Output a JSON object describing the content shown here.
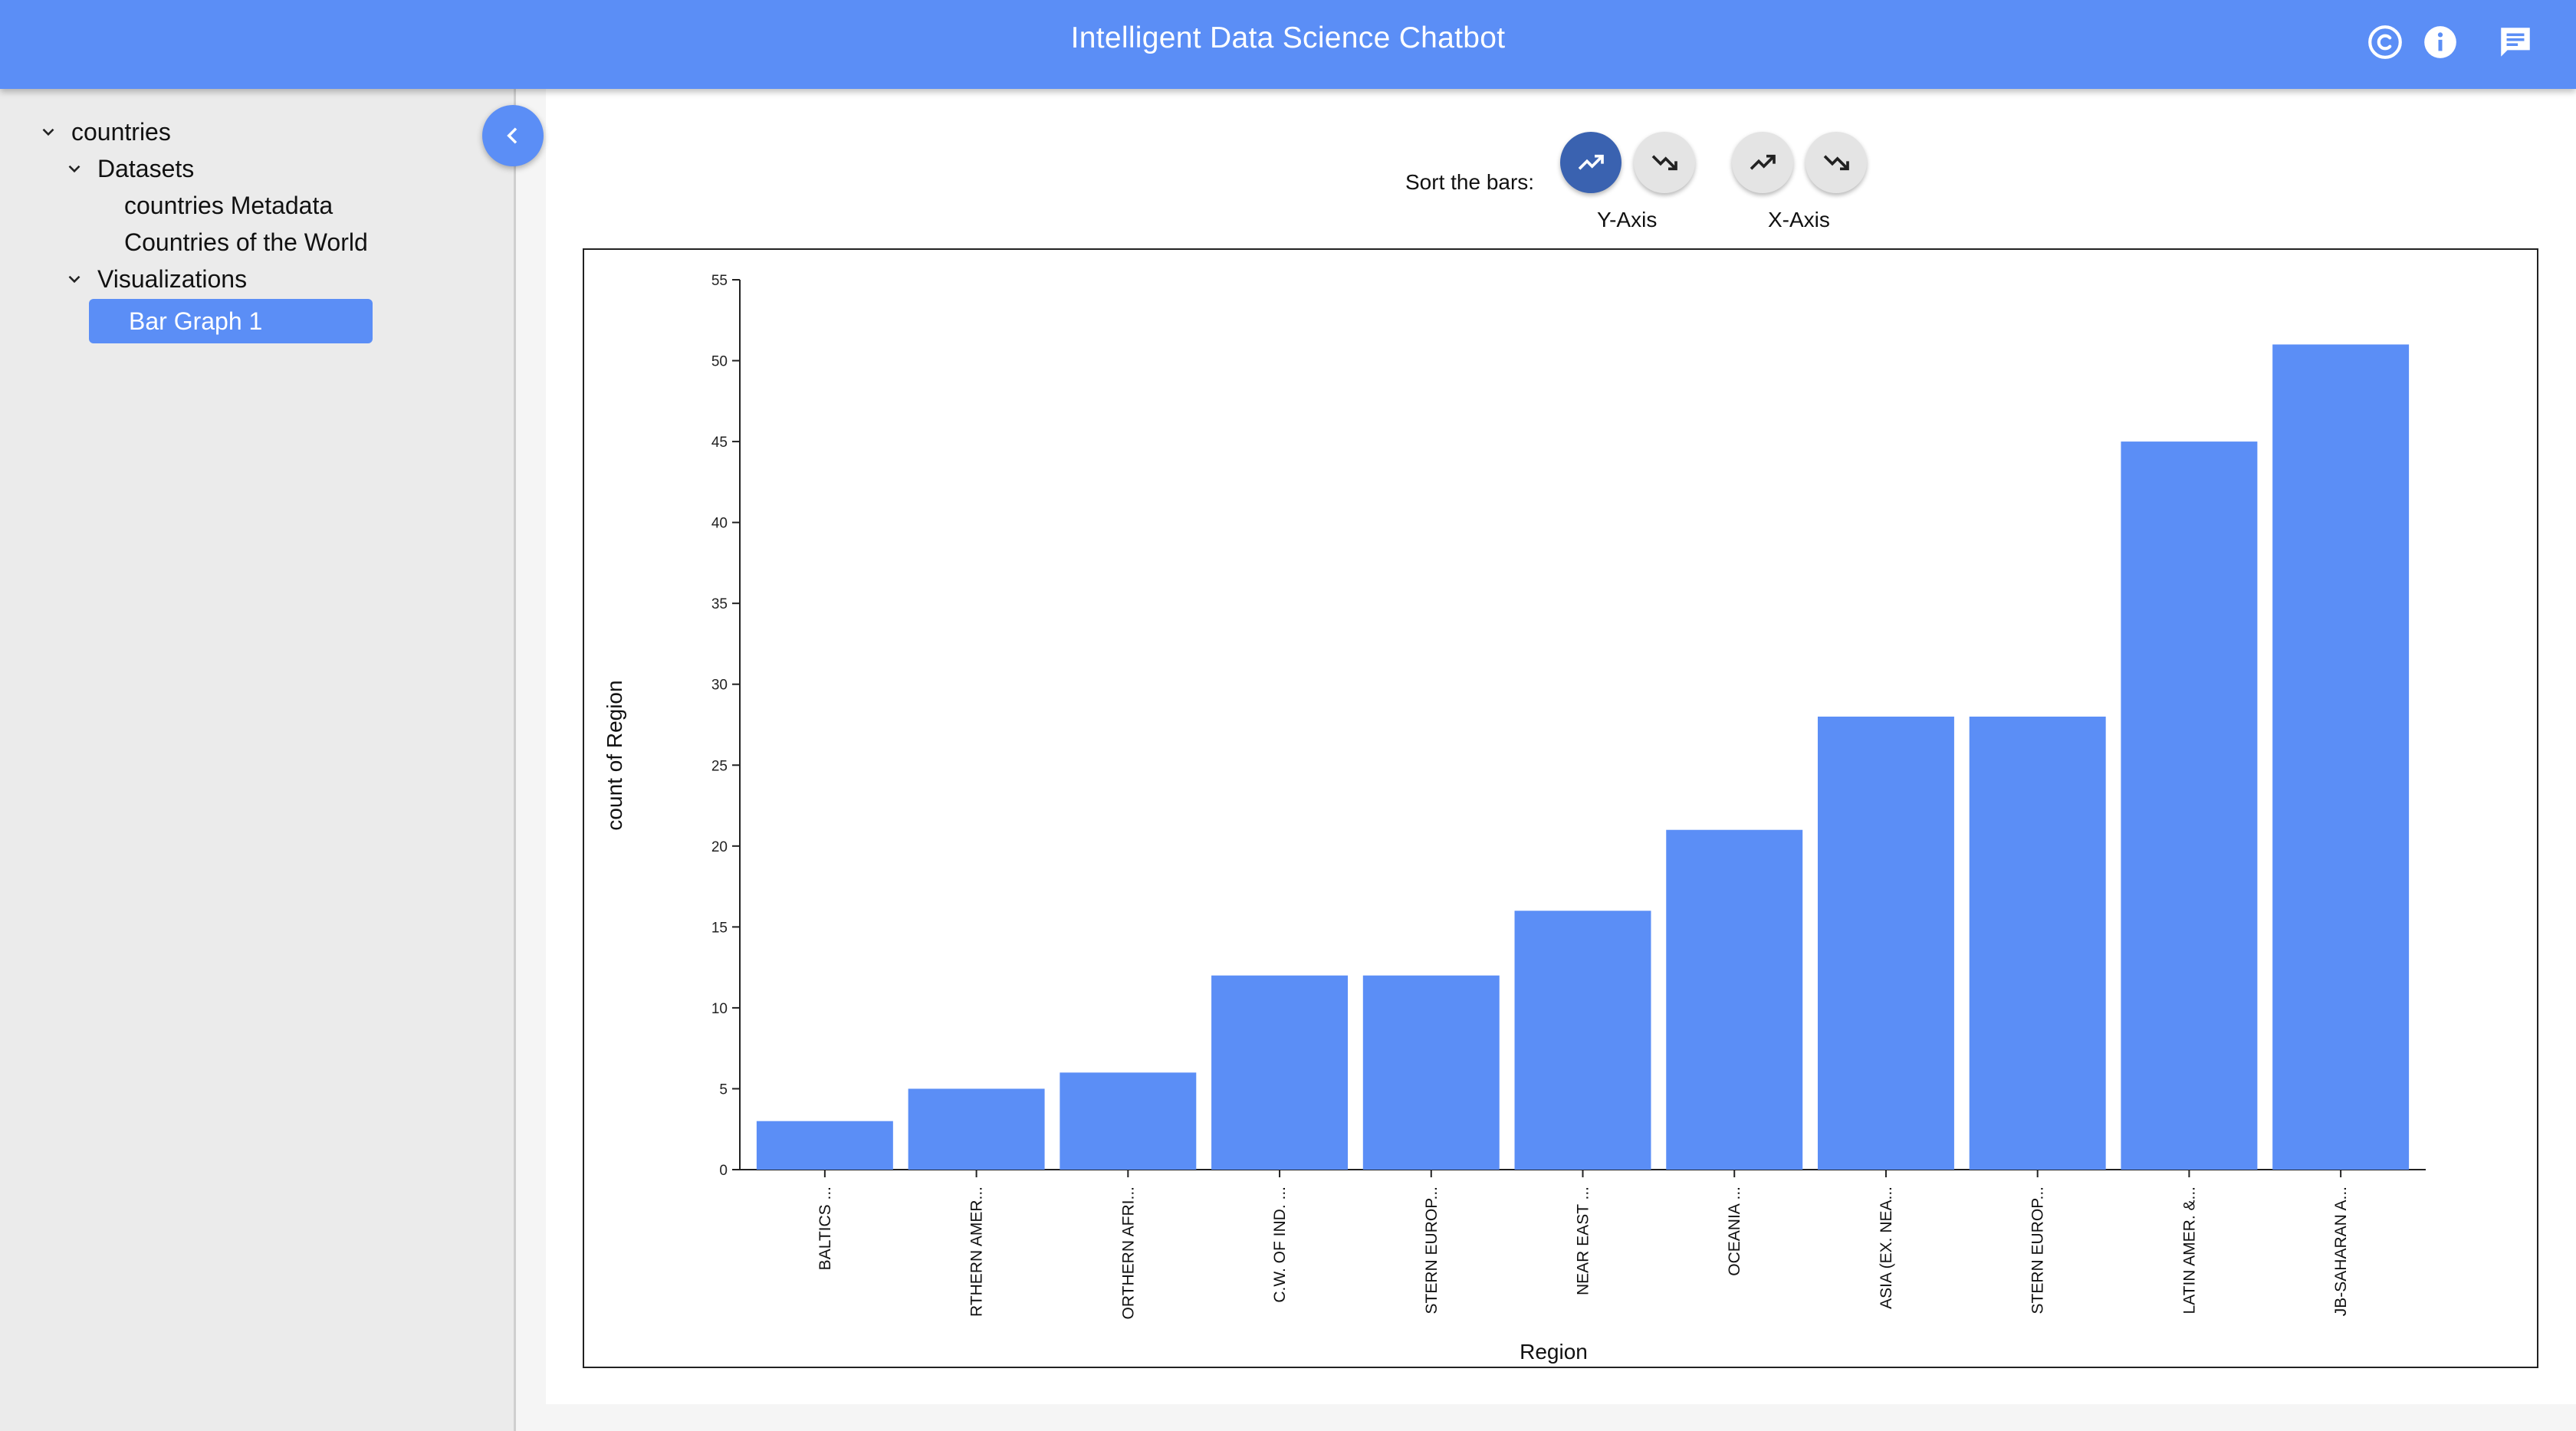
{
  "header": {
    "title": "Intelligent Data Science Chatbot",
    "icons": [
      "copyright-icon",
      "info-icon",
      "chat-icon"
    ]
  },
  "sidebar": {
    "root": "countries",
    "datasets_label": "Datasets",
    "datasets": [
      "countries Metadata",
      "Countries of the World"
    ],
    "visualizations_label": "Visualizations",
    "visualizations": [
      "Bar Graph 1"
    ]
  },
  "sort": {
    "label": "Sort the bars:",
    "y_axis_label": "Y-Axis",
    "x_axis_label": "X-Axis"
  },
  "colors": {
    "accent": "#5b8ef6",
    "active_button": "#3a62b0",
    "bar": "#5b8ef6"
  },
  "chart_data": {
    "type": "bar",
    "categories": [
      "BALTICS ...",
      "RTHERN AMER...",
      "ORTHERN AFRI...",
      "C.W. OF IND. ...",
      "STERN EUROP...",
      "NEAR EAST ...",
      "OCEANIA ...",
      "ASIA (EX. NEA...",
      "STERN EUROP...",
      "LATIN AMER. &...",
      "JB-SAHARAN A..."
    ],
    "values": [
      3,
      5,
      6,
      12,
      12,
      16,
      21,
      28,
      28,
      45,
      51
    ],
    "xlabel": "Region",
    "ylabel": "count of Region",
    "ylim": [
      0,
      55
    ],
    "yticks": [
      0,
      5,
      10,
      15,
      20,
      25,
      30,
      35,
      40,
      45,
      50,
      55
    ],
    "grid": false
  }
}
